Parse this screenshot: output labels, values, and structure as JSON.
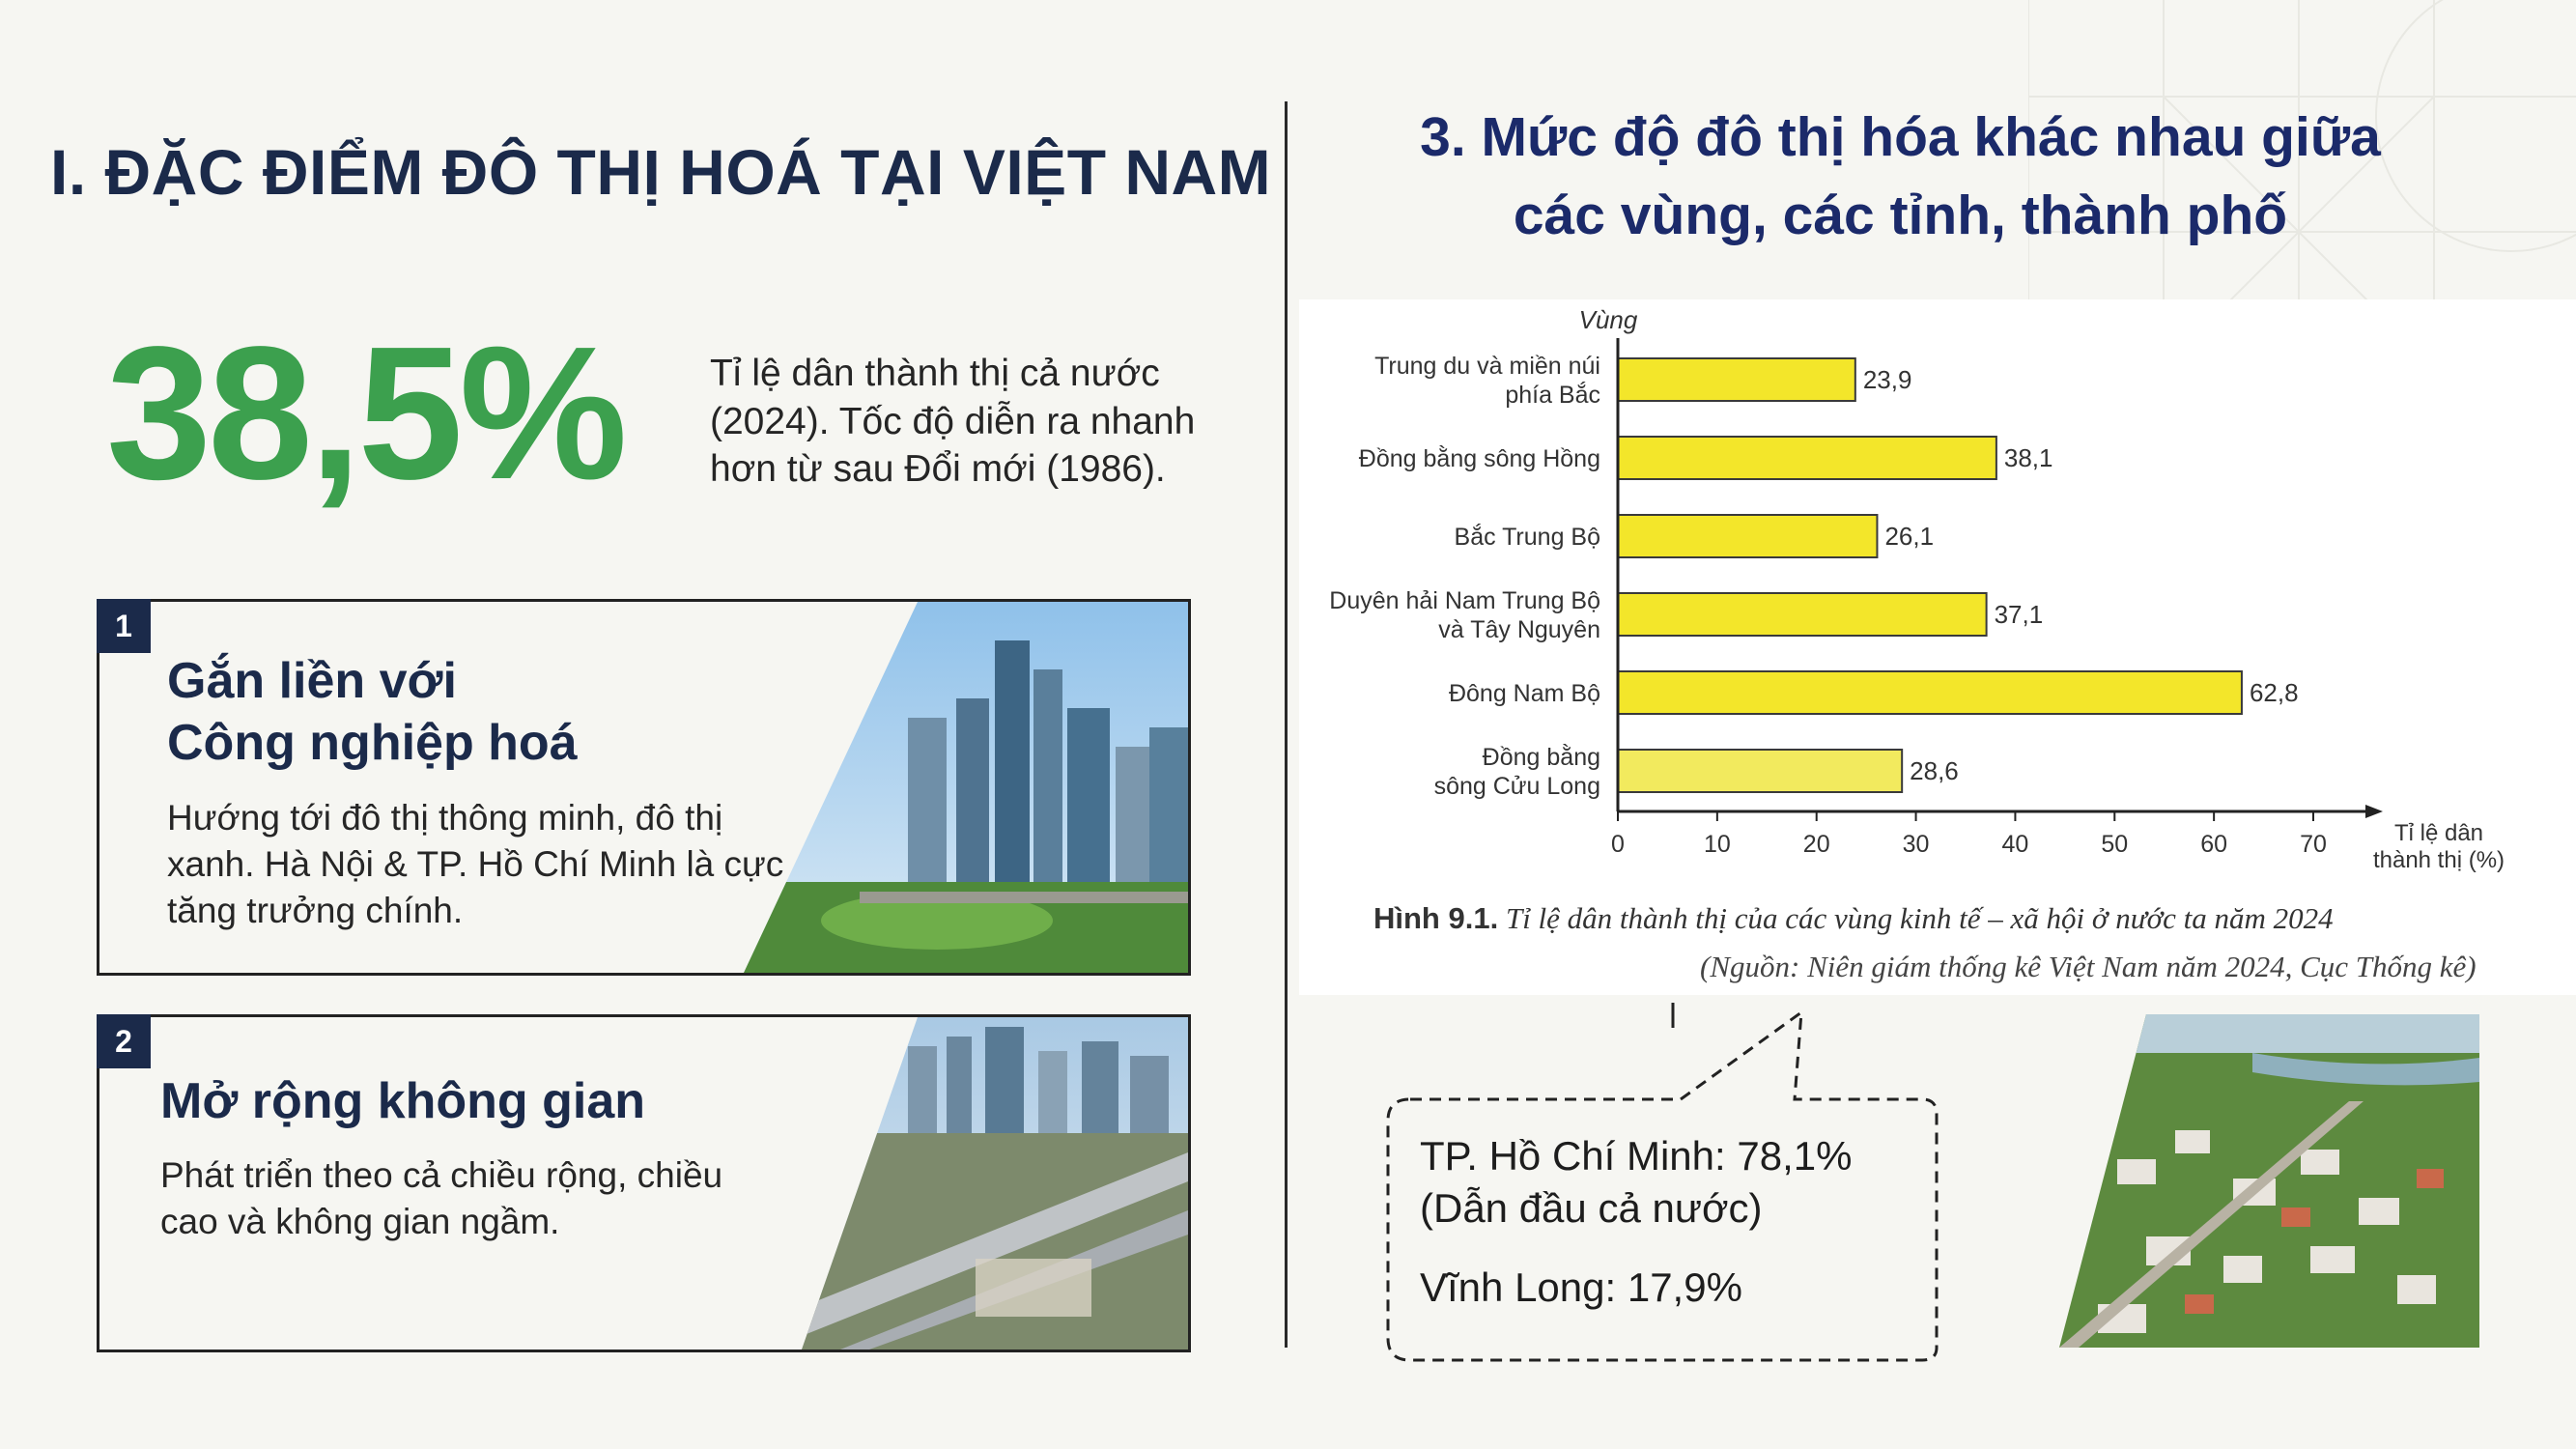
{
  "left": {
    "section_title": "I. ĐẶC ĐIỂM ĐÔ THỊ HOÁ TẠI VIỆT NAM",
    "stat_value": "38,5%",
    "stat_description": "Tỉ lệ dân thành thị cả nước (2024). Tốc độ diễn ra nhanh hơn từ sau Đổi mới (1986).",
    "cards": [
      {
        "number": "1",
        "title_line1": "Gắn liền với",
        "title_line2": "Công nghiệp hoá",
        "text": "Hướng tới đô thị thông minh, đô thị xanh. Hà Nội & TP. Hồ Chí Minh là cực tăng trưởng chính."
      },
      {
        "number": "2",
        "title": "Mở rộng không gian",
        "text": "Phát triển theo cả chiều rộng, chiều cao và không gian ngầm."
      }
    ]
  },
  "right": {
    "title_line1": "3. Mức độ đô thị hóa khác nhau giữa",
    "title_line2": "các vùng, các tỉnh, thành phố",
    "caption_label": "Hình 9.1.",
    "caption_text": "Tỉ lệ dân thành thị của các vùng kinh tế – xã hội ở nước ta năm 2024",
    "source": "(Nguồn: Niên giám thống kê Việt Nam năm 2024, Cục Thống kê)",
    "callout": {
      "line1": "TP. Hồ Chí Minh: 78,1%",
      "line2": "(Dẫn đầu cả nước)",
      "line3": "Vĩnh Long: 17,9%"
    }
  },
  "colors": {
    "navy": "#1b2a4a",
    "green": "#3ca04e",
    "bar_fill": "#f3e62a",
    "bar_stroke": "#3a3a3a"
  },
  "chart_data": {
    "type": "bar",
    "orientation": "horizontal",
    "ylabel": "Vùng",
    "xlabel": "Tỉ lệ dân thành thị (%)",
    "xlabel_lines": [
      "Tỉ lệ dân",
      "thành thị (%)"
    ],
    "xlim": [
      0,
      70
    ],
    "xticks": [
      0,
      10,
      20,
      30,
      40,
      50,
      60,
      70
    ],
    "categories": [
      [
        "Trung du và miền núi",
        "phía Bắc"
      ],
      [
        "Đồng bằng sông Hồng"
      ],
      [
        "Bắc Trung Bộ"
      ],
      [
        "Duyên hải Nam Trung Bộ",
        "và Tây Nguyên"
      ],
      [
        "Đông Nam Bộ"
      ],
      [
        "Đồng bằng",
        "sông Cửu Long"
      ]
    ],
    "values": [
      23.9,
      38.1,
      26.1,
      37.1,
      62.8,
      28.6
    ],
    "value_labels": [
      "23,9",
      "38,1",
      "26,1",
      "37,1",
      "62,8",
      "28,6"
    ]
  }
}
